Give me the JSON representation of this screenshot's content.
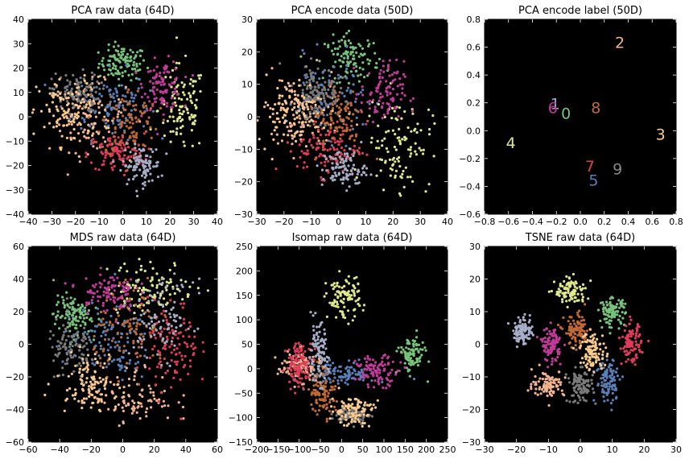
{
  "palette": [
    "#7fc97f",
    "#beaed4",
    "#fdc086",
    "#ffff99",
    "#386cb0",
    "#f0027f",
    "#bf5b17",
    "#666666",
    "#e7298a",
    "#a6cee3"
  ],
  "chart_data": [
    {
      "type": "scatter",
      "title": "PCA raw data (64D)",
      "xlim": [
        -40,
        40
      ],
      "ylim": [
        -40,
        40
      ],
      "xticks": [
        -40,
        -30,
        -20,
        -10,
        0,
        10,
        20,
        30,
        40
      ],
      "yticks": [
        -40,
        -30,
        -20,
        -10,
        0,
        10,
        20,
        30,
        40
      ],
      "background": "#000000",
      "clusters": [
        {
          "label": "0",
          "color": "#77c47a",
          "center": [
            0,
            22
          ],
          "spread": [
            5,
            3.5
          ],
          "n": 110
        },
        {
          "label": "1",
          "color": "#5a7fb8",
          "center": [
            -5,
            5
          ],
          "spread": [
            8,
            7
          ],
          "n": 110
        },
        {
          "label": "2",
          "color": "#f2b48f",
          "center": [
            -15,
            0
          ],
          "spread": [
            8,
            7
          ],
          "n": 110
        },
        {
          "label": "3",
          "color": "#dfe98c",
          "center": [
            25,
            3
          ],
          "spread": [
            5,
            9
          ],
          "n": 110
        },
        {
          "label": "4",
          "color": "#c33a9a",
          "center": [
            17,
            13
          ],
          "spread": [
            4,
            5
          ],
          "n": 100
        },
        {
          "label": "5",
          "color": "#e03c5a",
          "center": [
            -3,
            -15
          ],
          "spread": [
            6,
            4
          ],
          "n": 110
        },
        {
          "label": "6",
          "color": "#bf6a34",
          "center": [
            3,
            -2
          ],
          "spread": [
            6,
            7
          ],
          "n": 100
        },
        {
          "label": "7",
          "color": "#7a7a7a",
          "center": [
            -20,
            10
          ],
          "spread": [
            5,
            4
          ],
          "n": 100
        },
        {
          "label": "8",
          "color": "#f9cb8e",
          "center": [
            -22,
            2
          ],
          "spread": [
            7,
            7
          ],
          "n": 100
        },
        {
          "label": "9",
          "color": "#a8aec8",
          "center": [
            8,
            -20
          ],
          "spread": [
            4,
            4
          ],
          "n": 100
        }
      ]
    },
    {
      "type": "scatter",
      "title": "PCA encode data (50D)",
      "xlim": [
        -30,
        40
      ],
      "ylim": [
        -30,
        30
      ],
      "xticks": [
        -30,
        -20,
        -10,
        0,
        10,
        20,
        30,
        40
      ],
      "yticks": [
        -30,
        -20,
        -10,
        0,
        10,
        20,
        30
      ],
      "background": "#000000",
      "clusters": [
        {
          "label": "0",
          "color": "#77c47a",
          "center": [
            5,
            18
          ],
          "spread": [
            5,
            3.5
          ],
          "n": 110
        },
        {
          "label": "1",
          "color": "#5a7fb8",
          "center": [
            -5,
            6
          ],
          "spread": [
            7,
            6
          ],
          "n": 110
        },
        {
          "label": "2",
          "color": "#f2b48f",
          "center": [
            -14,
            0
          ],
          "spread": [
            7,
            6
          ],
          "n": 110
        },
        {
          "label": "3",
          "color": "#dfe98c",
          "center": [
            22,
            -8
          ],
          "spread": [
            6,
            7
          ],
          "n": 110
        },
        {
          "label": "4",
          "color": "#c33a9a",
          "center": [
            16,
            7
          ],
          "spread": [
            4,
            5
          ],
          "n": 100
        },
        {
          "label": "5",
          "color": "#e03c5a",
          "center": [
            -3,
            -10
          ],
          "spread": [
            6,
            4
          ],
          "n": 110
        },
        {
          "label": "6",
          "color": "#bf6a34",
          "center": [
            0,
            0
          ],
          "spread": [
            5,
            6
          ],
          "n": 100
        },
        {
          "label": "7",
          "color": "#7a7a7a",
          "center": [
            -8,
            8
          ],
          "spread": [
            4,
            4
          ],
          "n": 100
        },
        {
          "label": "8",
          "color": "#f9cb8e",
          "center": [
            -18,
            2
          ],
          "spread": [
            6,
            5
          ],
          "n": 100
        },
        {
          "label": "9",
          "color": "#a8aec8",
          "center": [
            2,
            -16
          ],
          "spread": [
            4,
            3
          ],
          "n": 100
        }
      ]
    },
    {
      "type": "scatter",
      "title": "PCA encode label (50D)",
      "xlim": [
        -0.8,
        0.8
      ],
      "ylim": [
        -0.6,
        0.8
      ],
      "xticks": [
        -0.8,
        -0.6,
        -0.4,
        -0.2,
        0.0,
        0.2,
        0.4,
        0.6,
        0.8
      ],
      "yticks": [
        -0.6,
        -0.4,
        -0.2,
        0.0,
        0.2,
        0.4,
        0.6,
        0.8
      ],
      "xticklabels": [
        "−0.8",
        "−0.6",
        "−0.4",
        "−0.2",
        "0.0",
        "0.2",
        "0.4",
        "0.6",
        "0.8"
      ],
      "yticklabels": [
        "−0.6",
        "−0.4",
        "−0.2",
        "0.0",
        "0.2",
        "0.4",
        "0.6",
        "0.8"
      ],
      "background": "#000000",
      "labels": [
        {
          "text": "2",
          "x": 0.33,
          "y": 0.63,
          "color": "#f2b48f"
        },
        {
          "text": "1",
          "x": -0.21,
          "y": 0.19,
          "color": "#9aa8c9"
        },
        {
          "text": "6",
          "x": -0.23,
          "y": 0.16,
          "color": "#c33a9a"
        },
        {
          "text": "0",
          "x": -0.12,
          "y": 0.12,
          "color": "#77c47a"
        },
        {
          "text": "8",
          "x": 0.13,
          "y": 0.16,
          "color": "#bf6a34"
        },
        {
          "text": "3",
          "x": 0.67,
          "y": -0.03,
          "color": "#f9cb8e"
        },
        {
          "text": "4",
          "x": -0.58,
          "y": -0.09,
          "color": "#dfe98c"
        },
        {
          "text": "7",
          "x": 0.08,
          "y": -0.26,
          "color": "#e03c5a"
        },
        {
          "text": "9",
          "x": 0.31,
          "y": -0.28,
          "color": "#888888"
        },
        {
          "text": "5",
          "x": 0.11,
          "y": -0.36,
          "color": "#5a7fb8"
        }
      ]
    },
    {
      "type": "scatter",
      "title": "MDS raw data (64D)",
      "xlim": [
        -60,
        60
      ],
      "ylim": [
        -60,
        60
      ],
      "xticks": [
        -60,
        -40,
        -20,
        0,
        20,
        40,
        60
      ],
      "yticks": [
        -60,
        -40,
        -20,
        0,
        20,
        40,
        60
      ],
      "background": "#000000",
      "clusters": [
        {
          "label": "0",
          "color": "#77c47a",
          "center": [
            -32,
            18
          ],
          "spread": [
            6,
            6
          ],
          "n": 110
        },
        {
          "label": "1",
          "color": "#5a7fb8",
          "center": [
            -10,
            0
          ],
          "spread": [
            14,
            12
          ],
          "n": 110
        },
        {
          "label": "2",
          "color": "#f2b48f",
          "center": [
            5,
            -32
          ],
          "spread": [
            14,
            8
          ],
          "n": 110
        },
        {
          "label": "3",
          "color": "#dfe98c",
          "center": [
            18,
            35
          ],
          "spread": [
            14,
            8
          ],
          "n": 110
        },
        {
          "label": "4",
          "color": "#c33a9a",
          "center": [
            -10,
            32
          ],
          "spread": [
            9,
            6
          ],
          "n": 100
        },
        {
          "label": "5",
          "color": "#e03c5a",
          "center": [
            32,
            -2
          ],
          "spread": [
            8,
            14
          ],
          "n": 110
        },
        {
          "label": "6",
          "color": "#bf6a34",
          "center": [
            6,
            8
          ],
          "spread": [
            12,
            12
          ],
          "n": 100
        },
        {
          "label": "7",
          "color": "#7a7a7a",
          "center": [
            -32,
            -5
          ],
          "spread": [
            8,
            10
          ],
          "n": 100
        },
        {
          "label": "8",
          "color": "#f9cb8e",
          "center": [
            -22,
            -22
          ],
          "spread": [
            10,
            8
          ],
          "n": 100
        },
        {
          "label": "9",
          "color": "#a8aec8",
          "center": [
            25,
            15
          ],
          "spread": [
            10,
            12
          ],
          "n": 100
        }
      ]
    },
    {
      "type": "scatter",
      "title": "Isomap raw data (64D)",
      "xlim": [
        -200,
        250
      ],
      "ylim": [
        -150,
        250
      ],
      "xticks": [
        -200,
        -150,
        -100,
        -50,
        0,
        50,
        100,
        150,
        200,
        250
      ],
      "yticks": [
        -150,
        -100,
        -50,
        0,
        50,
        100,
        150,
        200,
        250
      ],
      "background": "#000000",
      "clusters": [
        {
          "label": "0",
          "color": "#77c47a",
          "center": [
            165,
            28
          ],
          "spread": [
            15,
            18
          ],
          "n": 100
        },
        {
          "label": "1",
          "color": "#5a7fb8",
          "center": [
            0,
            -10
          ],
          "spread": [
            40,
            12
          ],
          "n": 110
        },
        {
          "label": "2",
          "color": "#f2b48f",
          "center": [
            -100,
            5
          ],
          "spread": [
            25,
            15
          ],
          "n": 100
        },
        {
          "label": "3",
          "color": "#dfe98c",
          "center": [
            5,
            145
          ],
          "spread": [
            20,
            22
          ],
          "n": 100
        },
        {
          "label": "4",
          "color": "#c33a9a",
          "center": [
            85,
            -5
          ],
          "spread": [
            25,
            15
          ],
          "n": 100
        },
        {
          "label": "5",
          "color": "#e03c5a",
          "center": [
            -100,
            10
          ],
          "spread": [
            15,
            22
          ],
          "n": 110
        },
        {
          "label": "6",
          "color": "#bf6a34",
          "center": [
            -45,
            -45
          ],
          "spread": [
            15,
            25
          ],
          "n": 100
        },
        {
          "label": "7",
          "color": "#7a7a7a",
          "center": [
            25,
            -95
          ],
          "spread": [
            20,
            8
          ],
          "n": 100
        },
        {
          "label": "8",
          "color": "#f9cb8e",
          "center": [
            25,
            -85
          ],
          "spread": [
            25,
            15
          ],
          "n": 100
        },
        {
          "label": "9",
          "color": "#a8aec8",
          "center": [
            -55,
            30
          ],
          "spread": [
            12,
            30
          ],
          "n": 100
        }
      ]
    },
    {
      "type": "scatter",
      "title": "TSNE raw data (64D)",
      "xlim": [
        -30,
        30
      ],
      "ylim": [
        -30,
        30
      ],
      "xticks": [
        -30,
        -20,
        -10,
        0,
        10,
        20,
        30
      ],
      "yticks": [
        -30,
        -20,
        -10,
        0,
        10,
        20,
        30
      ],
      "background": "#000000",
      "clusters": [
        {
          "label": "0",
          "color": "#77c47a",
          "center": [
            10,
            10
          ],
          "spread": [
            2,
            2
          ],
          "n": 100
        },
        {
          "label": "1",
          "color": "#5a7fb8",
          "center": [
            9,
            -11
          ],
          "spread": [
            2,
            3.5
          ],
          "n": 100
        },
        {
          "label": "2",
          "color": "#f2b48f",
          "center": [
            -10,
            -12
          ],
          "spread": [
            2.5,
            2
          ],
          "n": 100
        },
        {
          "label": "3",
          "color": "#dfe98c",
          "center": [
            -3,
            16
          ],
          "spread": [
            2.5,
            2
          ],
          "n": 100
        },
        {
          "label": "4",
          "color": "#c33a9a",
          "center": [
            -9,
            0
          ],
          "spread": [
            1.5,
            2.5
          ],
          "n": 100
        },
        {
          "label": "5",
          "color": "#e03c5a",
          "center": [
            16,
            0
          ],
          "spread": [
            1.5,
            3
          ],
          "n": 100
        },
        {
          "label": "6",
          "color": "#bf6a34",
          "center": [
            -1,
            4
          ],
          "spread": [
            2,
            2.5
          ],
          "n": 100
        },
        {
          "label": "7",
          "color": "#7a7a7a",
          "center": [
            0,
            -13
          ],
          "spread": [
            2,
            2.5
          ],
          "n": 100
        },
        {
          "label": "8",
          "color": "#f9cb8e",
          "center": [
            4,
            -2
          ],
          "spread": [
            2,
            3
          ],
          "n": 100
        },
        {
          "label": "9",
          "color": "#a8aec8",
          "center": [
            -18,
            4
          ],
          "spread": [
            1.5,
            2
          ],
          "n": 100
        }
      ]
    }
  ]
}
